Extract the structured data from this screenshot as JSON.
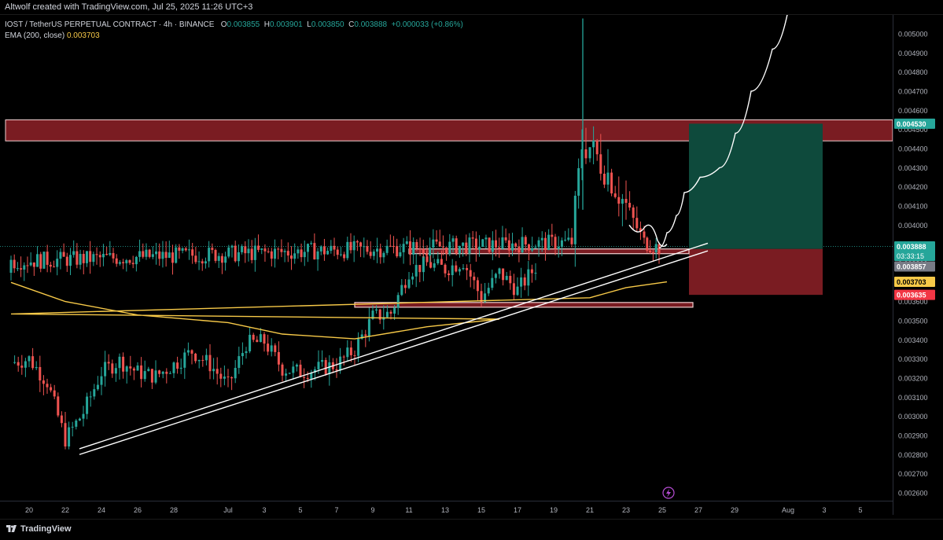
{
  "header": {
    "attribution": "Altwolf created with TradingView.com, Jul 25, 2025 11:26 UTC+3"
  },
  "legend": {
    "symbol": "IOST / TetherUS PERPETUAL CONTRACT · 4h · BINANCE",
    "open_label": "O",
    "open": "0.003855",
    "high_label": "H",
    "high": "0.003901",
    "low_label": "L",
    "low": "0.003850",
    "close_label": "C",
    "close": "0.003888",
    "change": "+0.000033 (+0.86%)",
    "ema_label": "EMA (200, close)",
    "ema_value": "0.003703"
  },
  "footer": {
    "brand": "TradingView"
  },
  "colors": {
    "up": "#26a69a",
    "down": "#ef5350",
    "ema": "#f7c948",
    "resistance_zone": "#7a1c22",
    "target_zone": "#0e4a3c",
    "stop_zone": "#7a1c22",
    "current_price_tag": "#26a69a",
    "target_tag": "#26a69a",
    "stop_tag": "#f23645",
    "ema_tag": "#f7c948"
  },
  "chart_data": {
    "type": "candlestick",
    "ylim": [
      0.00255,
      0.00508
    ],
    "y_ticks": [
      "0.005000",
      "0.004900",
      "0.004800",
      "0.004700",
      "0.004600",
      "0.004500",
      "0.004400",
      "0.004300",
      "0.004200",
      "0.004100",
      "0.004000",
      "0.003900",
      "0.003800",
      "0.003700",
      "0.003600",
      "0.003500",
      "0.003400",
      "0.003300",
      "0.003200",
      "0.003100",
      "0.003000",
      "0.002900",
      "0.002800",
      "0.002700",
      "0.002600"
    ],
    "x_ticks": [
      "20",
      "22",
      "24",
      "26",
      "28",
      "Jul",
      "3",
      "5",
      "7",
      "9",
      "11",
      "13",
      "15",
      "17",
      "19",
      "21",
      "23",
      "25",
      "27",
      "29",
      "Aug",
      "3",
      "5"
    ],
    "price_labels": {
      "target": "0.004530",
      "current": "0.003888",
      "countdown": "03:33:15",
      "previous_close": "0.003857",
      "ema": "0.003703",
      "stop": "0.003635"
    },
    "zones": {
      "resistance": [
        0.00444,
        0.00455
      ],
      "upper_support": [
        0.003855,
        0.003875
      ],
      "lower_support": [
        0.003571,
        0.003595
      ],
      "long_target": [
        0.003875,
        0.00453
      ],
      "long_stop": [
        0.003635,
        0.003875
      ]
    },
    "ema_path": [
      [
        "19",
        0.0037
      ],
      [
        "22",
        0.0036
      ],
      [
        "26",
        0.00353
      ],
      [
        "Jul",
        0.00349
      ],
      [
        "4",
        0.00343
      ],
      [
        "8",
        0.003405
      ],
      [
        "12",
        0.003468
      ],
      [
        "16",
        0.003508
      ],
      [
        "19",
        0.003535
      ],
      [
        "21",
        0.00362
      ],
      [
        "23",
        0.003673
      ],
      [
        "24",
        0.003703
      ]
    ],
    "close_path": [
      [
        "19",
        0.00328
      ],
      [
        "20",
        0.0033
      ],
      [
        "21",
        0.00318
      ],
      [
        "22",
        0.00288
      ],
      [
        "23",
        0.00302
      ],
      [
        "24",
        0.00323
      ],
      [
        "25",
        0.00329
      ],
      [
        "26",
        0.00323
      ],
      [
        "27",
        0.00321
      ],
      [
        "28",
        0.00327
      ],
      [
        "29",
        0.00334
      ],
      [
        "30",
        0.00327
      ],
      [
        "Jul",
        0.00316
      ],
      [
        "2",
        0.00338
      ],
      [
        "3",
        0.00339
      ],
      [
        "4",
        0.00325
      ],
      [
        "5",
        0.00323
      ],
      [
        "6",
        0.00325
      ],
      [
        "7",
        0.00327
      ],
      [
        "8",
        0.00335
      ],
      [
        "9",
        0.00352
      ],
      [
        "10",
        0.00354
      ],
      [
        "11",
        0.00376
      ],
      [
        "12",
        0.0038
      ],
      [
        "13",
        0.00377
      ],
      [
        "14",
        0.00381
      ],
      [
        "15",
        0.00362
      ],
      [
        "16",
        0.00375
      ],
      [
        "17",
        0.00366
      ],
      [
        "18",
        0.00378
      ],
      [
        "19",
        0.00381
      ],
      [
        "20",
        0.00391
      ],
      [
        "20.5",
        0.00442
      ],
      [
        "21",
        0.00441
      ],
      [
        "22",
        0.00427
      ],
      [
        "23",
        0.0041
      ],
      [
        "24",
        0.00391
      ],
      [
        "24.5",
        0.00388
      ]
    ],
    "projection_path": [
      [
        "24.5",
        0.00388
      ],
      [
        "25",
        0.00396
      ],
      [
        "25.5",
        0.00405
      ],
      [
        "26",
        0.00417
      ],
      [
        "27",
        0.00425
      ],
      [
        "28",
        0.0043
      ],
      [
        "29",
        0.00448
      ],
      [
        "30",
        0.0047
      ],
      [
        "31",
        0.00492
      ],
      [
        "Aug",
        0.00512
      ]
    ]
  }
}
